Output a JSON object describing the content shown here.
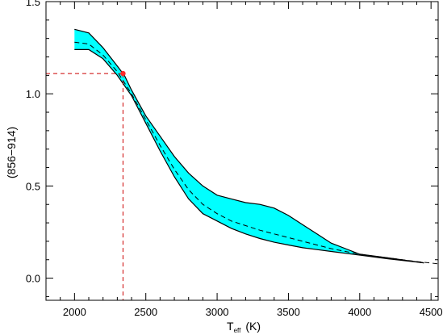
{
  "chart_data": {
    "type": "area",
    "title": "",
    "xlabel": {
      "main": "T",
      "subscript": "eff",
      "unit": "(K)"
    },
    "ylabel": "(856−914)",
    "xlim": [
      1800,
      4550
    ],
    "ylim": [
      -0.12,
      1.5
    ],
    "xticks": [
      2000,
      2500,
      3000,
      3500,
      4000,
      4500
    ],
    "xtick_labels": [
      "2000",
      "2500",
      "3000",
      "3500",
      "4000",
      "4500"
    ],
    "yticks": [
      0.0,
      0.5,
      1.0,
      1.5
    ],
    "ytick_labels": [
      "0.0",
      "0.5",
      "1.0",
      "1.5"
    ],
    "grid": false,
    "band_color": "#00ffff",
    "band": {
      "upper": [
        {
          "x": 2000,
          "y": 1.35
        },
        {
          "x": 2100,
          "y": 1.33
        },
        {
          "x": 2200,
          "y": 1.25
        },
        {
          "x": 2300,
          "y": 1.15
        },
        {
          "x": 2350,
          "y": 1.1
        },
        {
          "x": 2400,
          "y": 1.02
        },
        {
          "x": 2500,
          "y": 0.88
        },
        {
          "x": 2600,
          "y": 0.77
        },
        {
          "x": 2700,
          "y": 0.66
        },
        {
          "x": 2800,
          "y": 0.57
        },
        {
          "x": 2900,
          "y": 0.5
        },
        {
          "x": 3000,
          "y": 0.45
        },
        {
          "x": 3100,
          "y": 0.43
        },
        {
          "x": 3200,
          "y": 0.41
        },
        {
          "x": 3300,
          "y": 0.4
        },
        {
          "x": 3400,
          "y": 0.38
        },
        {
          "x": 3500,
          "y": 0.34
        },
        {
          "x": 3600,
          "y": 0.29
        },
        {
          "x": 3700,
          "y": 0.24
        },
        {
          "x": 3800,
          "y": 0.19
        },
        {
          "x": 3900,
          "y": 0.16
        },
        {
          "x": 4000,
          "y": 0.13
        },
        {
          "x": 4200,
          "y": 0.11
        },
        {
          "x": 4450,
          "y": 0.083
        }
      ],
      "lower": [
        {
          "x": 2000,
          "y": 1.24
        },
        {
          "x": 2100,
          "y": 1.24
        },
        {
          "x": 2200,
          "y": 1.19
        },
        {
          "x": 2300,
          "y": 1.1
        },
        {
          "x": 2400,
          "y": 0.99
        },
        {
          "x": 2500,
          "y": 0.84
        },
        {
          "x": 2600,
          "y": 0.69
        },
        {
          "x": 2700,
          "y": 0.55
        },
        {
          "x": 2800,
          "y": 0.43
        },
        {
          "x": 2900,
          "y": 0.35
        },
        {
          "x": 3000,
          "y": 0.31
        },
        {
          "x": 3100,
          "y": 0.27
        },
        {
          "x": 3200,
          "y": 0.24
        },
        {
          "x": 3300,
          "y": 0.215
        },
        {
          "x": 3400,
          "y": 0.195
        },
        {
          "x": 3500,
          "y": 0.18
        },
        {
          "x": 3600,
          "y": 0.165
        },
        {
          "x": 3700,
          "y": 0.155
        },
        {
          "x": 3800,
          "y": 0.145
        },
        {
          "x": 3900,
          "y": 0.135
        },
        {
          "x": 4000,
          "y": 0.125
        },
        {
          "x": 4200,
          "y": 0.105
        },
        {
          "x": 4450,
          "y": 0.083
        }
      ]
    },
    "dashed_curve": [
      {
        "x": 2000,
        "y": 1.28
      },
      {
        "x": 2100,
        "y": 1.27
      },
      {
        "x": 2200,
        "y": 1.21
      },
      {
        "x": 2300,
        "y": 1.12
      },
      {
        "x": 2400,
        "y": 1.0
      },
      {
        "x": 2500,
        "y": 0.86
      },
      {
        "x": 2600,
        "y": 0.72
      },
      {
        "x": 2700,
        "y": 0.59
      },
      {
        "x": 2800,
        "y": 0.48
      },
      {
        "x": 2900,
        "y": 0.4
      },
      {
        "x": 3000,
        "y": 0.35
      },
      {
        "x": 3100,
        "y": 0.31
      },
      {
        "x": 3200,
        "y": 0.285
      },
      {
        "x": 3300,
        "y": 0.26
      },
      {
        "x": 3400,
        "y": 0.24
      },
      {
        "x": 3500,
        "y": 0.22
      },
      {
        "x": 3600,
        "y": 0.2
      },
      {
        "x": 3700,
        "y": 0.18
      },
      {
        "x": 3800,
        "y": 0.16
      },
      {
        "x": 3900,
        "y": 0.145
      },
      {
        "x": 4000,
        "y": 0.13
      },
      {
        "x": 4200,
        "y": 0.11
      },
      {
        "x": 4400,
        "y": 0.09
      },
      {
        "x": 4550,
        "y": 0.078
      }
    ],
    "marker": {
      "x": 2340,
      "y": 1.11,
      "color": "#ff2a2a"
    },
    "guide_lines_color": "#cc0000"
  }
}
